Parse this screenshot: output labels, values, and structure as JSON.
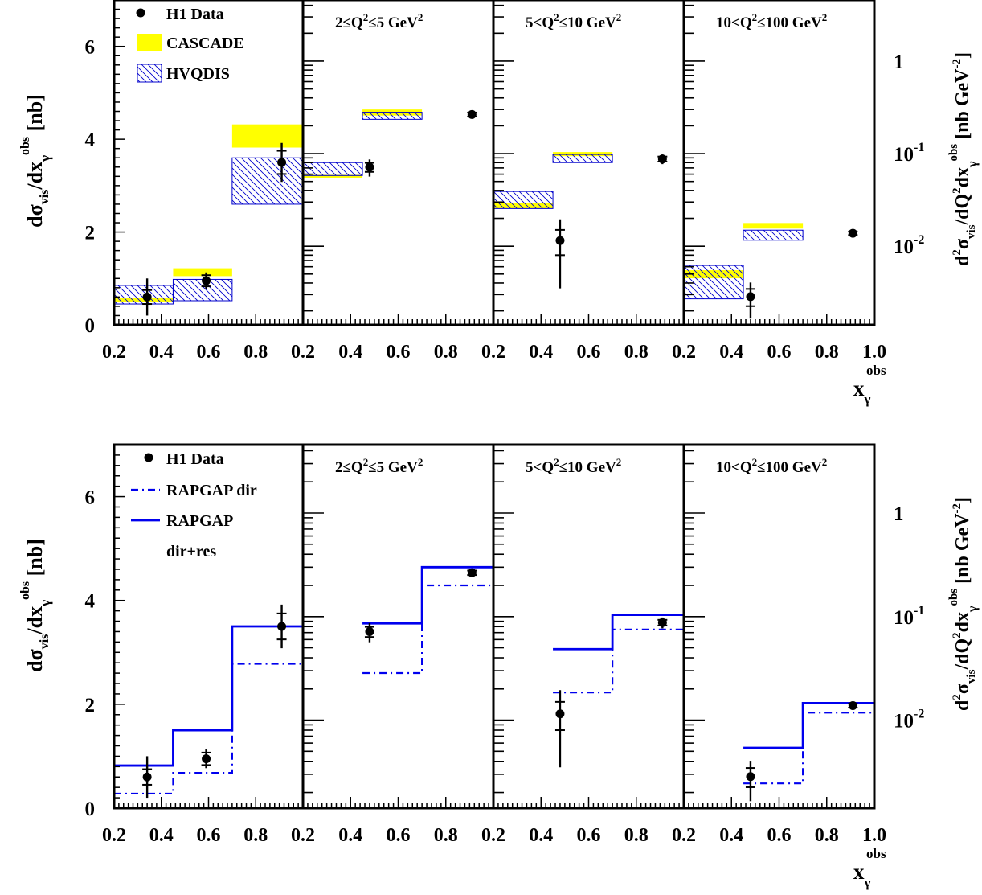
{
  "figure": {
    "shared": {
      "q2_bins": [
        "2≤Q²≤5 GeV²",
        "5<Q²≤10 GeV²",
        "10<Q²≤100 GeV²"
      ],
      "y_left_label": "dσvis/dxγobs [nb]",
      "y_right_label": "d²σvis/dQ²dxγobs [nb GeV⁻²]",
      "x_label": "xγobs",
      "x_ticks": [
        "0.2",
        "0.4",
        "0.6",
        "0.8",
        "0.2",
        "0.4",
        "0.6",
        "0.8",
        "0.2",
        "0.4",
        "0.6",
        "0.8",
        "0.2",
        "0.4",
        "0.6",
        "0.8",
        "1.0"
      ],
      "y_ticks": [
        "0",
        "2",
        "4",
        "6"
      ],
      "y_right_ticks": [
        "1",
        "10⁻¹",
        "10⁻²"
      ]
    },
    "colors": {
      "data": "#000000",
      "cascade": "#ffff00",
      "hvqdis": "#0000cc",
      "rapgap": "#0000ee"
    }
  },
  "chart_data": [
    {
      "type": "bar",
      "bins": [
        [
          0.2,
          0.45
        ],
        [
          0.45,
          0.7
        ],
        [
          0.7,
          1.0
        ]
      ],
      "xlim": [
        0.2,
        1.0
      ],
      "ylim": [
        0,
        7
      ],
      "legend": [
        "H1 Data",
        "CASCADE",
        "HVQDIS"
      ],
      "panels": [
        {
          "q2_bin": "",
          "y_scale": "linear",
          "data": [
            {
              "x": 0.34,
              "y": 0.6,
              "err_stat": 0.15,
              "err_tot": 0.4
            },
            {
              "x": 0.59,
              "y": 0.95,
              "err_stat": 0.12,
              "err_tot": 0.18
            },
            {
              "x": 0.91,
              "y": 3.5,
              "err_stat": 0.25,
              "err_tot": 0.42
            }
          ],
          "cascade": [
            [
              0.5,
              0.58
            ],
            [
              1.05,
              1.22
            ],
            [
              3.82,
              4.32
            ]
          ],
          "hvqdis": [
            [
              0.45,
              0.85
            ],
            [
              0.52,
              0.98
            ],
            [
              2.6,
              3.6
            ]
          ]
        },
        {
          "q2_bin": "2≤Q²≤5 GeV²",
          "y_scale": "log",
          "data": [
            {
              "x": 0.48,
              "y": 0.0715,
              "err_stat": 0.008,
              "err_tot": 0.015
            },
            {
              "x": 0.91,
              "y": 0.265,
              "err_stat": 0.013,
              "err_tot": 0.02
            }
          ],
          "cascade": [
            [
              0.055,
              0.059
            ],
            [
              0.258,
              0.3
            ]
          ],
          "hvqdis": [
            [
              0.058,
              0.08
            ],
            [
              0.235,
              0.28
            ]
          ]
        },
        {
          "q2_bin": "5<Q²≤10 GeV²",
          "y_scale": "log",
          "data": [
            {
              "x": 0.48,
              "y": 0.0115,
              "err_stat": 0.0035,
              "err_tot": 0.008
            },
            {
              "x": 0.91,
              "y": 0.0875,
              "err_stat": 0.0055,
              "err_tot": 0.0105
            }
          ],
          "cascade": [
            [
              0.0255,
              0.0295
            ],
            [
              0.094,
              0.104
            ]
          ],
          "hvqdis": [
            [
              0.0255,
              0.039
            ],
            [
              0.08,
              0.098
            ]
          ]
        },
        {
          "q2_bin": "10<Q²≤100 GeV²",
          "y_scale": "log",
          "data": [
            {
              "x": 0.48,
              "y": 0.00285,
              "err_stat": 0.0006,
              "err_tot": 0.0012
            },
            {
              "x": 0.91,
              "y": 0.0138,
              "err_stat": 0.0006,
              "err_tot": 0.0009
            }
          ],
          "cascade": [
            [
              0.0045,
              0.0055
            ],
            [
              0.0155,
              0.0178
            ]
          ],
          "hvqdis": [
            [
              0.0027,
              0.0062
            ],
            [
              0.0116,
              0.0149
            ]
          ]
        }
      ]
    },
    {
      "type": "line",
      "bins": [
        [
          0.2,
          0.45
        ],
        [
          0.45,
          0.7
        ],
        [
          0.7,
          1.0
        ]
      ],
      "xlim": [
        0.2,
        1.0
      ],
      "ylim": [
        0,
        7
      ],
      "legend": [
        "H1 Data",
        "RAPGAP dir",
        "RAPGAP",
        "dir+res"
      ],
      "panels": [
        {
          "q2_bin": "",
          "y_scale": "linear",
          "data": [
            {
              "x": 0.34,
              "y": 0.6,
              "err_stat": 0.15,
              "err_tot": 0.4
            },
            {
              "x": 0.59,
              "y": 0.95,
              "err_stat": 0.12,
              "err_tot": 0.18
            },
            {
              "x": 0.91,
              "y": 3.5,
              "err_stat": 0.25,
              "err_tot": 0.42
            }
          ],
          "rapgap_dir": [
            0.28,
            0.68,
            2.78
          ],
          "rapgap": [
            0.82,
            1.5,
            3.5
          ]
        },
        {
          "q2_bin": "2≤Q²≤5 GeV²",
          "y_scale": "log",
          "data": [
            {
              "x": 0.48,
              "y": 0.0715,
              "err_stat": 0.008,
              "err_tot": 0.015
            },
            {
              "x": 0.91,
              "y": 0.265,
              "err_stat": 0.013,
              "err_tot": 0.02
            }
          ],
          "rapgap_dir": [
            0.0285,
            0.2
          ],
          "rapgap": [
            0.086,
            0.3
          ]
        },
        {
          "q2_bin": "5<Q²≤10 GeV²",
          "y_scale": "log",
          "data": [
            {
              "x": 0.48,
              "y": 0.0115,
              "err_stat": 0.0035,
              "err_tot": 0.008
            },
            {
              "x": 0.91,
              "y": 0.0875,
              "err_stat": 0.0055,
              "err_tot": 0.0105
            }
          ],
          "rapgap_dir": [
            0.0185,
            0.075
          ],
          "rapgap": [
            0.0485,
            0.104
          ]
        },
        {
          "q2_bin": "10<Q²≤100 GeV²",
          "y_scale": "log",
          "data": [
            {
              "x": 0.48,
              "y": 0.00285,
              "err_stat": 0.0006,
              "err_tot": 0.0012
            },
            {
              "x": 0.91,
              "y": 0.0138,
              "err_stat": 0.0006,
              "err_tot": 0.0009
            }
          ],
          "rapgap_dir": [
            0.00245,
            0.0118
          ],
          "rapgap": [
            0.0054,
            0.0146
          ]
        }
      ]
    }
  ]
}
